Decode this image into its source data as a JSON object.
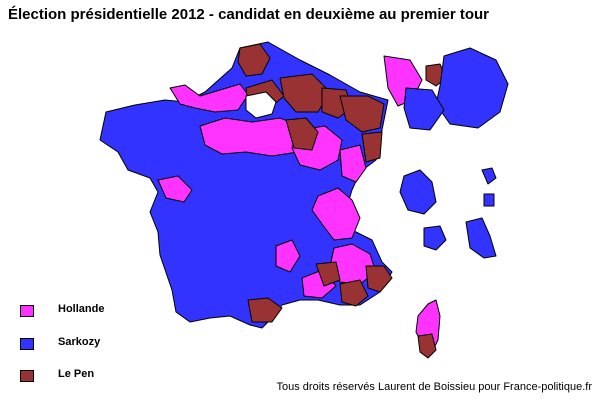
{
  "title": "Élection présidentielle 2012 - candidat en deuxième au premier tour",
  "legend": [
    {
      "label": "Hollande",
      "color": "#ff33ff"
    },
    {
      "label": "Sarkozy",
      "color": "#3333ff"
    },
    {
      "label": "Le Pen",
      "color": "#993333"
    }
  ],
  "copyright": "Tous droits réservés Laurent de Boissieu pour France-politique.fr"
}
